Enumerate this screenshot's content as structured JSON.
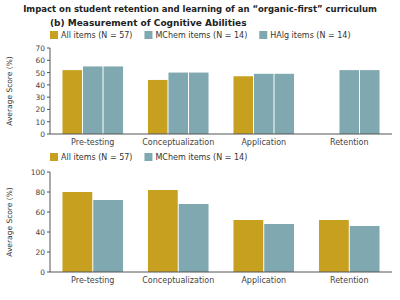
{
  "title": "Impact on student retention and learning of an “organic-first” curriculum",
  "chart_data": [
    {
      "type": "bar",
      "title": "(b) Measurement of Cognitive Abilities",
      "categories": [
        "Pre-testing",
        "Conceptualization",
        "Application",
        "Retention"
      ],
      "series": [
        {
          "name": "All items (N = 57)",
          "color": "#c8a020",
          "values": [
            52,
            44,
            47,
            null
          ]
        },
        {
          "name": "MChem items (N = 14)",
          "color": "#7fa8b0",
          "values": [
            55,
            50,
            49,
            52
          ]
        },
        {
          "name": "HAlg items (N = 14)",
          "color": "#7fa8b0",
          "values": [
            55,
            50,
            49,
            52
          ]
        }
      ],
      "ylabel": "Average Score (%)",
      "ylim": [
        0,
        70
      ],
      "yticks": [
        0,
        10,
        20,
        30,
        40,
        50,
        60,
        70
      ],
      "grid": false
    },
    {
      "type": "bar",
      "categories": [
        "Pre-testing",
        "Conceptualization",
        "Application",
        "Retention"
      ],
      "series": [
        {
          "name": "All items (N = 57)",
          "color": "#c8a020",
          "values": [
            80,
            82,
            52,
            52
          ]
        },
        {
          "name": "MChem items (N = 14)",
          "color": "#7fa8b0",
          "values": [
            72,
            68,
            48,
            46
          ]
        }
      ],
      "ylabel": "Average Score (%)",
      "ylim": [
        0,
        100
      ],
      "yticks": [
        0,
        20,
        40,
        60,
        80,
        100
      ],
      "grid": false
    }
  ]
}
